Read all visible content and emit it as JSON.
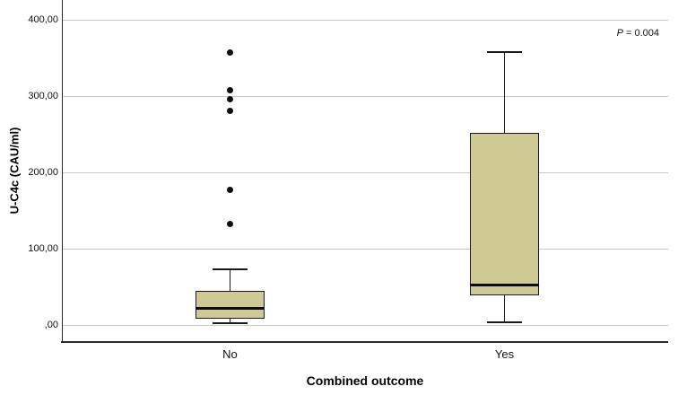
{
  "chart_data": {
    "type": "boxplot",
    "title": "",
    "xlabel": "Combined outcome",
    "ylabel": "U-C4c (CAU/ml)",
    "ylim": [
      0,
      400
    ],
    "grid": true,
    "legend_position": "none",
    "yticks": [
      {
        "value": 0,
        "label": ",00"
      },
      {
        "value": 100,
        "label": "100,00"
      },
      {
        "value": 200,
        "label": "200,00"
      },
      {
        "value": 300,
        "label": "300,00"
      },
      {
        "value": 400,
        "label": "400,00"
      }
    ],
    "annotation": {
      "p_symbol": "P",
      "p_rest": "= 0.004"
    },
    "groups": [
      {
        "label": "No",
        "whisker_min": 2,
        "q1": 8,
        "median": 22,
        "q3": 44,
        "whisker_max": 73,
        "outliers": [
          132,
          177,
          281,
          296,
          307,
          357
        ]
      },
      {
        "label": "Yes",
        "whisker_min": 3,
        "q1": 38,
        "median": 52,
        "q3": 252,
        "whisker_max": 358,
        "outliers": []
      }
    ],
    "colors": {
      "box_fill": "#cfc993",
      "box_border": "#1c1c1c",
      "median": "#0d0d0d",
      "whisker": "#1a1a1a",
      "outlier": "#0d0d0d",
      "gridline": "#c9c9c9",
      "axis": "#2a2a2a",
      "background": "#ffffff"
    }
  }
}
